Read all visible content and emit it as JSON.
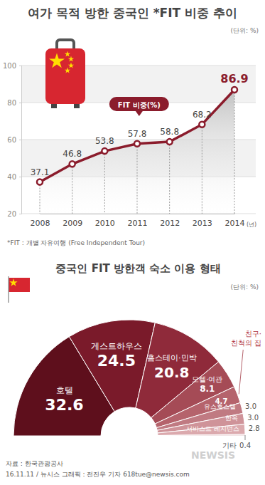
{
  "chart_data": [
    {
      "type": "line",
      "title": "여가 목적 방한 중국인 *FIT 비중 추이",
      "unit": "(단위: %)",
      "note": "*FIT : 개별 자유여행 (Free Independent Tour)",
      "categories": [
        "2008",
        "2009",
        "2010",
        "2011",
        "2012",
        "2013",
        "2014"
      ],
      "xlabel": "(년)",
      "ylim": [
        20,
        100
      ],
      "yticks": [
        20,
        40,
        60,
        80,
        100
      ],
      "grid": true,
      "data_labels": true,
      "marker": "circle",
      "series": [
        {
          "name": "FIT 비중(%)",
          "color": "#8b1c2c",
          "values": [
            37.1,
            46.8,
            53.8,
            57.8,
            58.8,
            68.2,
            86.9
          ]
        }
      ]
    },
    {
      "type": "pie",
      "title": "중국인 FIT 방한객 숙소 이용 형태",
      "unit": "(단위: %)",
      "categories": [
        "호텔",
        "게스트하우스",
        "홈스테이·민박",
        "모텔·여관",
        "친구·친척의 집",
        "유스호스텔",
        "한옥",
        "서비스드 레지던스",
        "기타"
      ],
      "values": [
        32.6,
        24.5,
        20.8,
        8.1,
        4.7,
        3.0,
        3.0,
        2.8,
        0.4
      ],
      "value_labels": [
        "32.6",
        "24.5",
        "20.8",
        "8.1",
        "4.7",
        "3.0",
        "3.0",
        "2.8",
        "0.4"
      ],
      "colors": [
        "#5e0f1c",
        "#7a1a2a",
        "#8f2a3a",
        "#a54b56",
        "#b5636c",
        "#c07a82",
        "#cf9399",
        "#dba9ad",
        "#e8cdcf"
      ],
      "data_labels": true
    }
  ],
  "footer": {
    "source": "자료 : 한국관광공사",
    "credit": "16.11.11 / 뉴시스 그래픽 : 전진우 기자 618tue@newsis.com",
    "logo": "NEWSIS"
  }
}
